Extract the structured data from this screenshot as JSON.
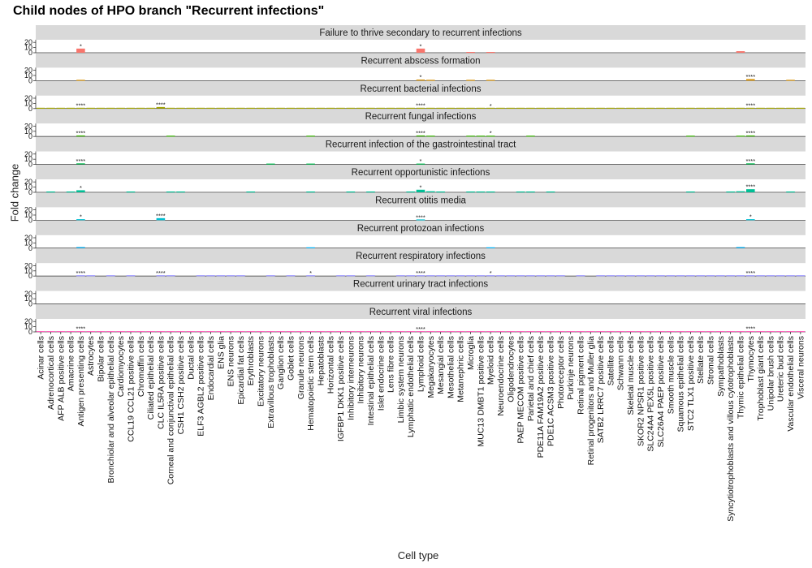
{
  "chart_data": {
    "type": "bar",
    "title": "Child nodes of HPO branch \"Recurrent infections\"",
    "xlabel": "Cell type",
    "ylabel": "Fold change",
    "y_ticks": [
      "0",
      "10",
      "20"
    ],
    "ylim": [
      0,
      25
    ],
    "grid": false,
    "legend": "none",
    "categories": [
      "Acinar cells",
      "Adrenocortical cells",
      "AFP ALB positive cells",
      "Amacrine cells",
      "Antigen presenting cells",
      "Astrocytes",
      "Bipolar cells",
      "Bronchiolar and alveolar epithelial cells",
      "Cardiomyocytes",
      "CCL19 CCL21 positive cells",
      "Chromaffin cells",
      "Ciliated epithelial cells",
      "CLC IL5RA positive cells",
      "Corneal and conjunctival epithelial cells",
      "CSH1 CSH2 positive cells",
      "Ductal cells",
      "ELF3 AGBL2 positive cells",
      "Endocardial cells",
      "ENS glia",
      "ENS neurons",
      "Epicardial fat cells",
      "Erythroblasts",
      "Excitatory neurons",
      "Extravillous trophoblasts",
      "Ganglion cells",
      "Goblet cells",
      "Granule neurons",
      "Hematopoietic stem cells",
      "Hepatoblasts",
      "Horizontal cells",
      "IGFBP1 DKK1 positive cells",
      "Inhibitory interneurons",
      "Inhibitory neurons",
      "Intestinal epithelial cells",
      "Islet endocrine cells",
      "Lens fibre cells",
      "Limbic system neurons",
      "Lymphatic endothelial cells",
      "Lymphoid cells",
      "Megakaryocytes",
      "Mesangial cells",
      "Mesothelial cells",
      "Metanephric cells",
      "Microglia",
      "MUC13 DMBT1 positive cells",
      "Myeloid cells",
      "Neuroendocrine cells",
      "Oligodendrocytes",
      "PAEP MECOM positive cells",
      "Parietal and chief cells",
      "PDE11A FAM19A2 positive cells",
      "PDE1C ACSM3 positive cells",
      "Photoreceptor cells",
      "Purkinje neurons",
      "Retinal pigment cells",
      "Retinal progenitors and Muller glia",
      "SATB2 LRRC7 positive cells",
      "Satellite cells",
      "Schwann cells",
      "Skeletal muscle cells",
      "SKOR2 NPSR1 positive cells",
      "SLC24A4 PEX5L positive cells",
      "SLC26A4 PAEP positive cells",
      "Smooth muscle cells",
      "Squamous epithelial cells",
      "STC2 TLX1 positive cells",
      "Stellate cells",
      "Stromal cells",
      "Sympathoblasts",
      "Syncytiotrophoblasts and villous cytotrophoblasts",
      "Thymic epithelial cells",
      "Thymocytes",
      "Trophoblast giant cells",
      "Unipolar brush cells",
      "Ureteric bud cells",
      "Vascular endothelial cells",
      "Visceral neurons"
    ],
    "series": [
      {
        "name": "Failure to thrive secondary to recurrent infections",
        "color": "#F8766D",
        "values": {
          "Antigen presenting cells": 8,
          "Lymphoid cells": 8,
          "Microglia": 1,
          "Myeloid cells": 1,
          "Thymic epithelial cells": 3
        },
        "labels": {
          "Antigen presenting cells": "*",
          "Lymphoid cells": "*"
        }
      },
      {
        "name": "Recurrent abscess formation",
        "color": "#D89000",
        "values": {
          "Antigen presenting cells": 1,
          "Lymphoid cells": 2,
          "Megakaryocytes": 1,
          "Microglia": 1,
          "Myeloid cells": 1,
          "Thymocytes": 3,
          "Vascular endothelial cells": 1
        },
        "labels": {
          "Lymphoid cells": "*",
          "Thymocytes": "****"
        }
      },
      {
        "name": "Recurrent bacterial infections",
        "color": "#A3A500",
        "values": {
          "Acinar cells": 0.5,
          "Adrenocortical cells": 0.5,
          "AFP ALB positive cells": 0.5,
          "Amacrine cells": 0.5,
          "Antigen presenting cells": 1.5,
          "Astrocytes": 0.5,
          "Bipolar cells": 0.5,
          "Bronchiolar and alveolar epithelial cells": 0.5,
          "Cardiomyocytes": 0.5,
          "CCL19 CCL21 positive cells": 0.5,
          "Chromaffin cells": 0.5,
          "Ciliated epithelial cells": 0.5,
          "CLC IL5RA positive cells": 3,
          "Corneal and conjunctival epithelial cells": 0.5,
          "CSH1 CSH2 positive cells": 0.5,
          "Ductal cells": 0.5,
          "ELF3 AGBL2 positive cells": 0.5,
          "Endocardial cells": 0.5,
          "ENS glia": 0.5,
          "ENS neurons": 0.5,
          "Epicardial fat cells": 0.5,
          "Erythroblasts": 0.5,
          "Excitatory neurons": 0.5,
          "Extravillous trophoblasts": 0.5,
          "Ganglion cells": 0.5,
          "Goblet cells": 0.5,
          "Granule neurons": 0.5,
          "Hematopoietic stem cells": 0.5,
          "Hepatoblasts": 0.5,
          "Horizontal cells": 0.5,
          "IGFBP1 DKK1 positive cells": 0.5,
          "Inhibitory interneurons": 0.5,
          "Inhibitory neurons": 0.5,
          "Intestinal epithelial cells": 0.5,
          "Islet endocrine cells": 0.5,
          "Lens fibre cells": 0.5,
          "Limbic system neurons": 0.5,
          "Lymphatic endothelial cells": 0.5,
          "Lymphoid cells": 1.5,
          "Megakaryocytes": 0.5,
          "Mesangial cells": 0.5,
          "Mesothelial cells": 0.5,
          "Metanephric cells": 0.5,
          "Microglia": 0.5,
          "MUC13 DMBT1 positive cells": 0.5,
          "Myeloid cells": 0.5,
          "Neuroendocrine cells": 0.5,
          "Oligodendrocytes": 0.5,
          "PAEP MECOM positive cells": 0.5,
          "Parietal and chief cells": 0.5,
          "PDE11A FAM19A2 positive cells": 0.5,
          "PDE1C ACSM3 positive cells": 0.5,
          "Photoreceptor cells": 0.5,
          "Purkinje neurons": 0.5,
          "Retinal pigment cells": 0.5,
          "Retinal progenitors and Muller glia": 0.5,
          "SATB2 LRRC7 positive cells": 0.5,
          "Satellite cells": 0.5,
          "Schwann cells": 0.5,
          "Skeletal muscle cells": 0.5,
          "SKOR2 NPSR1 positive cells": 0.5,
          "SLC24A4 PEX5L positive cells": 0.5,
          "SLC26A4 PAEP positive cells": 0.5,
          "Smooth muscle cells": 0.5,
          "Squamous epithelial cells": 0.5,
          "STC2 TLX1 positive cells": 0.5,
          "Stellate cells": 0.5,
          "Stromal cells": 0.5,
          "Sympathoblasts": 0.5,
          "Syncytiotrophoblasts and villous cytotrophoblasts": 0.5,
          "Thymic epithelial cells": 0.5,
          "Thymocytes": 1.5,
          "Trophoblast giant cells": 0.5,
          "Unipolar brush cells": 0.5,
          "Ureteric bud cells": 0.5,
          "Vascular endothelial cells": 0.5,
          "Visceral neurons": 0.5
        },
        "labels": {
          "Antigen presenting cells": "****",
          "CLC IL5RA positive cells": "****",
          "Lymphoid cells": "****",
          "Myeloid cells": "*",
          "Thymocytes": "****"
        }
      },
      {
        "name": "Recurrent fungal infections",
        "color": "#39B600",
        "values": {
          "Antigen presenting cells": 2,
          "Corneal and conjunctival epithelial cells": 1,
          "Hematopoietic stem cells": 1,
          "Lymphoid cells": 2,
          "Megakaryocytes": 1,
          "Microglia": 1,
          "MUC13 DMBT1 positive cells": 1,
          "Myeloid cells": 1.5,
          "Parietal and chief cells": 1,
          "STC2 TLX1 positive cells": 1,
          "Thymic epithelial cells": 1,
          "Thymocytes": 2
        },
        "labels": {
          "Antigen presenting cells": "****",
          "Lymphoid cells": "****",
          "Myeloid cells": "*",
          "Thymocytes": "****"
        }
      },
      {
        "name": "Recurrent infection of the gastrointestinal tract",
        "color": "#00BB4E",
        "values": {
          "Antigen presenting cells": 2,
          "Extravillous trophoblasts": 1,
          "Hematopoietic stem cells": 1,
          "Lymphoid cells": 1.5,
          "Thymocytes": 2
        },
        "labels": {
          "Antigen presenting cells": "****",
          "Lymphoid cells": "*",
          "Thymocytes": "****"
        }
      },
      {
        "name": "Recurrent opportunistic infections",
        "color": "#00BF96",
        "values": {
          "Adrenocortical cells": 1,
          "Amacrine cells": 1,
          "Antigen presenting cells": 4,
          "CCL19 CCL21 positive cells": 1,
          "Corneal and conjunctival epithelial cells": 1,
          "CSH1 CSH2 positive cells": 1,
          "Erythroblasts": 1,
          "Hematopoietic stem cells": 1,
          "Inhibitory interneurons": 1,
          "Intestinal epithelial cells": 1,
          "Lymphatic endothelial cells": 1,
          "Lymphoid cells": 5,
          "Megakaryocytes": 2,
          "Mesangial cells": 1,
          "Microglia": 1,
          "MUC13 DMBT1 positive cells": 1,
          "Myeloid cells": 1,
          "PAEP MECOM positive cells": 1,
          "Parietal and chief cells": 1,
          "PDE1C ACSM3 positive cells": 1,
          "STC2 TLX1 positive cells": 1,
          "Syncytiotrophoblasts and villous cytotrophoblasts": 1,
          "Thymic epithelial cells": 2,
          "Thymocytes": 6,
          "Vascular endothelial cells": 1
        },
        "labels": {
          "Antigen presenting cells": "*",
          "Lymphoid cells": "*",
          "Thymocytes": "****"
        }
      },
      {
        "name": "Recurrent otitis media",
        "color": "#00BDD0",
        "values": {
          "Antigen presenting cells": 2,
          "CLC IL5RA positive cells": 4,
          "Lymphoid cells": 1,
          "Thymocytes": 2
        },
        "labels": {
          "Antigen presenting cells": "*",
          "CLC IL5RA positive cells": "****",
          "Lymphoid cells": "****",
          "Thymocytes": "*"
        }
      },
      {
        "name": "Recurrent protozoan infections",
        "color": "#00B0F6",
        "values": {
          "Antigen presenting cells": 2,
          "Hematopoietic stem cells": 1,
          "Myeloid cells": 1,
          "Thymic epithelial cells": 2
        },
        "labels": {}
      },
      {
        "name": "Recurrent respiratory infections",
        "color": "#9590FF",
        "values": {
          "Antigen presenting cells": 1,
          "Astrocytes": 0.5,
          "Bronchiolar and alveolar epithelial cells": 0.5,
          "CCL19 CCL21 positive cells": 0.5,
          "CLC IL5RA positive cells": 1,
          "Corneal and conjunctival epithelial cells": 0.5,
          "ELF3 AGBL2 positive cells": 0.5,
          "Endocardial cells": 0.5,
          "ENS glia": 0.5,
          "ENS neurons": 0.5,
          "Epicardial fat cells": 0.5,
          "Extravillous trophoblasts": 0.5,
          "Goblet cells": 0.5,
          "Hematopoietic stem cells": 1,
          "IGFBP1 DKK1 positive cells": 0.5,
          "Inhibitory interneurons": 0.5,
          "Intestinal epithelial cells": 0.5,
          "Limbic system neurons": 0.5,
          "Lymphatic endothelial cells": 0.5,
          "Lymphoid cells": 1,
          "Megakaryocytes": 0.5,
          "Mesangial cells": 0.5,
          "Mesothelial cells": 0.5,
          "Metanephric cells": 0.5,
          "Microglia": 0.5,
          "MUC13 DMBT1 positive cells": 0.5,
          "Myeloid cells": 1,
          "Neuroendocrine cells": 0.5,
          "Oligodendrocytes": 0.5,
          "PAEP MECOM positive cells": 0.5,
          "Parietal and chief cells": 0.5,
          "PDE11A FAM19A2 positive cells": 0.5,
          "PDE1C ACSM3 positive cells": 0.5,
          "Photoreceptor cells": 0.5,
          "Retinal pigment cells": 0.5,
          "SATB2 LRRC7 positive cells": 0.5,
          "Satellite cells": 0.5,
          "Schwann cells": 0.5,
          "Skeletal muscle cells": 0.5,
          "SKOR2 NPSR1 positive cells": 0.5,
          "SLC24A4 PEX5L positive cells": 0.5,
          "SLC26A4 PAEP positive cells": 0.5,
          "Smooth muscle cells": 0.5,
          "Squamous epithelial cells": 0.5,
          "STC2 TLX1 positive cells": 0.5,
          "Stellate cells": 0.5,
          "Stromal cells": 0.5,
          "Sympathoblasts": 0.5,
          "Syncytiotrophoblasts and villous cytotrophoblasts": 0.5,
          "Thymic epithelial cells": 0.5,
          "Thymocytes": 1,
          "Trophoblast giant cells": 0.5,
          "Unipolar brush cells": 0.5,
          "Ureteric bud cells": 0.5,
          "Vascular endothelial cells": 0.5,
          "Visceral neurons": 0.5
        },
        "labels": {
          "Antigen presenting cells": "****",
          "CLC IL5RA positive cells": "****",
          "Hematopoietic stem cells": "*",
          "Lymphoid cells": "****",
          "Myeloid cells": "*",
          "Thymocytes": "****"
        }
      },
      {
        "name": "Recurrent urinary tract infections",
        "color": "#E76BF3",
        "values": {},
        "labels": {}
      },
      {
        "name": "Recurrent viral infections",
        "color": "#FF62BC",
        "values": {
          "Acinar cells": 0.5,
          "Adrenocortical cells": 0.5,
          "AFP ALB positive cells": 0.5,
          "Amacrine cells": 0.5,
          "Antigen presenting cells": 1.5,
          "Astrocytes": 0.5,
          "Bipolar cells": 0.5,
          "Bronchiolar and alveolar epithelial cells": 0.5,
          "Cardiomyocytes": 0.5,
          "CCL19 CCL21 positive cells": 0.5,
          "Chromaffin cells": 0.5,
          "Ciliated epithelial cells": 0.5,
          "CLC IL5RA positive cells": 0.5,
          "Corneal and conjunctival epithelial cells": 0.5,
          "CSH1 CSH2 positive cells": 0.5,
          "Ductal cells": 0.5,
          "ELF3 AGBL2 positive cells": 0.5,
          "Endocardial cells": 0.5,
          "ENS glia": 0.5,
          "ENS neurons": 0.5,
          "Epicardial fat cells": 0.5,
          "Erythroblasts": 0.5,
          "Excitatory neurons": 0.5,
          "Extravillous trophoblasts": 0.5,
          "Ganglion cells": 0.5,
          "Goblet cells": 0.5,
          "Granule neurons": 0.5,
          "Hematopoietic stem cells": 0.5,
          "Hepatoblasts": 0.5,
          "Horizontal cells": 0.5,
          "IGFBP1 DKK1 positive cells": 0.5,
          "Inhibitory interneurons": 0.5,
          "Inhibitory neurons": 0.5,
          "Intestinal epithelial cells": 0.5,
          "Islet endocrine cells": 0.5,
          "Lens fibre cells": 0.5,
          "Limbic system neurons": 0.5,
          "Lymphatic endothelial cells": 0.5,
          "Lymphoid cells": 1,
          "Megakaryocytes": 0.5,
          "Mesangial cells": 0.5,
          "Mesothelial cells": 0.5,
          "Metanephric cells": 0.5,
          "Microglia": 0.5,
          "MUC13 DMBT1 positive cells": 0.5,
          "Myeloid cells": 0.5,
          "Neuroendocrine cells": 0.5,
          "Oligodendrocytes": 0.5,
          "PAEP MECOM positive cells": 0.5,
          "Parietal and chief cells": 0.5,
          "PDE11A FAM19A2 positive cells": 0.5,
          "PDE1C ACSM3 positive cells": 0.5,
          "Photoreceptor cells": 0.5,
          "Purkinje neurons": 0.5,
          "Retinal pigment cells": 0.5,
          "Retinal progenitors and Muller glia": 0.5,
          "SATB2 LRRC7 positive cells": 0.5,
          "Satellite cells": 0.5,
          "Schwann cells": 0.5,
          "Skeletal muscle cells": 0.5,
          "SKOR2 NPSR1 positive cells": 0.5,
          "SLC24A4 PEX5L positive cells": 0.5,
          "SLC26A4 PAEP positive cells": 0.5,
          "Smooth muscle cells": 0.5,
          "Squamous epithelial cells": 0.5,
          "STC2 TLX1 positive cells": 0.5,
          "Stellate cells": 0.5,
          "Stromal cells": 0.5,
          "Sympathoblasts": 0.5,
          "Syncytiotrophoblasts and villous cytotrophoblasts": 0.5,
          "Thymic epithelial cells": 0.5,
          "Thymocytes": 1.5,
          "Trophoblast giant cells": 0.5,
          "Unipolar brush cells": 0.5,
          "Ureteric bud cells": 0.5,
          "Vascular endothelial cells": 0.5,
          "Visceral neurons": 0.5
        },
        "labels": {
          "Antigen presenting cells": "****",
          "Lymphoid cells": "****",
          "Thymocytes": "****"
        }
      }
    ]
  }
}
